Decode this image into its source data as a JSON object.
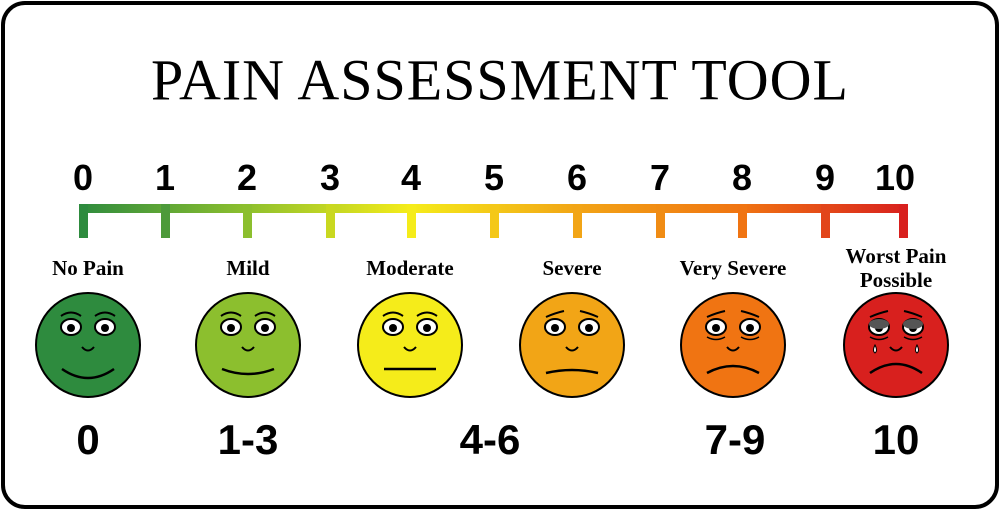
{
  "title": "PAIN ASSESSMENT TOOL",
  "scale": [
    "0",
    "1",
    "2",
    "3",
    "4",
    "5",
    "6",
    "7",
    "8",
    "9",
    "10"
  ],
  "faces": [
    {
      "label": "No Pain"
    },
    {
      "label": "Mild"
    },
    {
      "label": "Moderate"
    },
    {
      "label": "Severe"
    },
    {
      "label": "Very Severe"
    },
    {
      "label": "Worst Pain Possible"
    }
  ],
  "ranges": [
    "0",
    "1-3",
    "4-6",
    "7-9",
    "10"
  ]
}
